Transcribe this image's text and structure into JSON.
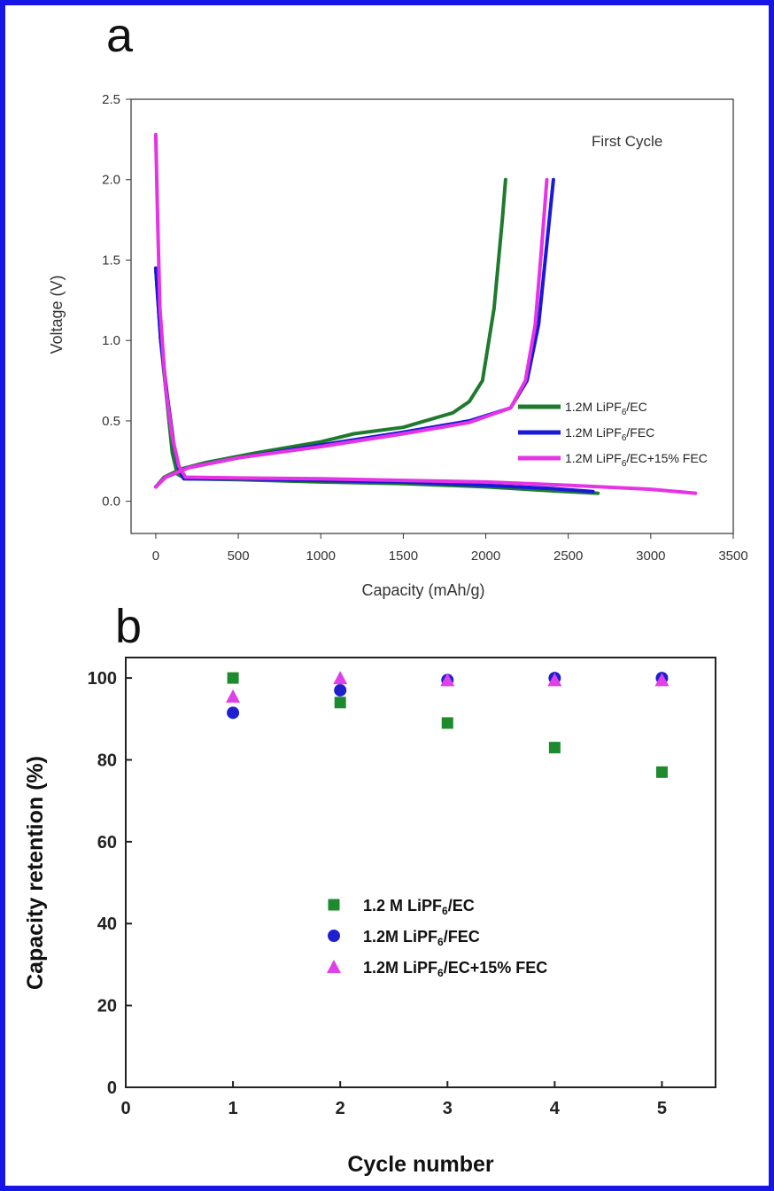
{
  "colors": {
    "frame": "#1515e6",
    "green": "#1f7a2e",
    "blue": "#1a1ad6",
    "magenta": "#e633e6",
    "green_marker": "#1e8a2e",
    "blue_marker": "#1f1fd0",
    "magenta_marker": "#e040e8"
  },
  "chart_data": [
    {
      "panel_label": "a",
      "type": "line",
      "annotation": "First Cycle",
      "xlabel": "Capacity (mAh/g)",
      "ylabel": "Voltage (V)",
      "xlim": [
        -150,
        3500
      ],
      "ylim": [
        -0.2,
        2.5
      ],
      "xticks": [
        0,
        500,
        1000,
        1500,
        2000,
        2500,
        3000,
        3500
      ],
      "yticks": [
        "0.0",
        "0.5",
        "1.0",
        "1.5",
        "2.0",
        "2.5"
      ],
      "grid": false,
      "legend_position": "center-right",
      "series": [
        {
          "name": "1.2M LiPF6/EC",
          "name_parts": [
            "1.2M LiPF",
            "6",
            "/EC"
          ],
          "color": "green",
          "discharge": [
            [
              0,
              1.45
            ],
            [
              30,
              1.0
            ],
            [
              60,
              0.7
            ],
            [
              100,
              0.3
            ],
            [
              130,
              0.17
            ],
            [
              180,
              0.14
            ],
            [
              500,
              0.135
            ],
            [
              1000,
              0.12
            ],
            [
              1500,
              0.11
            ],
            [
              2000,
              0.09
            ],
            [
              2400,
              0.065
            ],
            [
              2680,
              0.05
            ]
          ],
          "charge": [
            [
              0,
              0.09
            ],
            [
              50,
              0.15
            ],
            [
              150,
              0.2
            ],
            [
              300,
              0.24
            ],
            [
              600,
              0.3
            ],
            [
              1000,
              0.37
            ],
            [
              1200,
              0.42
            ],
            [
              1500,
              0.46
            ],
            [
              1800,
              0.55
            ],
            [
              1900,
              0.62
            ],
            [
              1980,
              0.75
            ],
            [
              2050,
              1.2
            ],
            [
              2100,
              1.75
            ],
            [
              2120,
              2.0
            ]
          ]
        },
        {
          "name": "1.2M LiPF6/FEC",
          "name_parts": [
            "1.2M LiPF",
            "6",
            "/FEC"
          ],
          "color": "blue",
          "discharge": [
            [
              0,
              1.45
            ],
            [
              30,
              1.0
            ],
            [
              70,
              0.65
            ],
            [
              110,
              0.35
            ],
            [
              140,
              0.2
            ],
            [
              170,
              0.14
            ],
            [
              500,
              0.14
            ],
            [
              1000,
              0.13
            ],
            [
              1500,
              0.12
            ],
            [
              2000,
              0.1
            ],
            [
              2400,
              0.08
            ],
            [
              2650,
              0.06
            ]
          ],
          "charge": [
            [
              0,
              0.09
            ],
            [
              60,
              0.15
            ],
            [
              200,
              0.21
            ],
            [
              500,
              0.27
            ],
            [
              1000,
              0.35
            ],
            [
              1500,
              0.43
            ],
            [
              1900,
              0.5
            ],
            [
              2150,
              0.58
            ],
            [
              2250,
              0.75
            ],
            [
              2320,
              1.1
            ],
            [
              2370,
              1.6
            ],
            [
              2410,
              2.0
            ]
          ]
        },
        {
          "name": "1.2M LiPF6/EC+15% FEC",
          "name_parts": [
            "1.2M LiPF",
            "6",
            "/EC+15% FEC"
          ],
          "color": "magenta",
          "discharge": [
            [
              0,
              2.28
            ],
            [
              10,
              1.8
            ],
            [
              25,
              1.2
            ],
            [
              60,
              0.7
            ],
            [
              100,
              0.4
            ],
            [
              140,
              0.22
            ],
            [
              180,
              0.15
            ],
            [
              500,
              0.145
            ],
            [
              1000,
              0.14
            ],
            [
              1500,
              0.13
            ],
            [
              2000,
              0.12
            ],
            [
              2500,
              0.1
            ],
            [
              3000,
              0.075
            ],
            [
              3270,
              0.05
            ]
          ],
          "charge": [
            [
              0,
              0.09
            ],
            [
              60,
              0.15
            ],
            [
              200,
              0.21
            ],
            [
              500,
              0.27
            ],
            [
              1000,
              0.34
            ],
            [
              1500,
              0.42
            ],
            [
              1900,
              0.49
            ],
            [
              2150,
              0.58
            ],
            [
              2240,
              0.75
            ],
            [
              2300,
              1.1
            ],
            [
              2340,
              1.6
            ],
            [
              2370,
              2.0
            ]
          ]
        }
      ]
    },
    {
      "panel_label": "b",
      "type": "scatter",
      "xlabel": "Cycle number",
      "ylabel": "Capacity retention (%)",
      "xlim": [
        0,
        5.5
      ],
      "ylim": [
        0,
        105
      ],
      "xticks": [
        0,
        1,
        2,
        3,
        4,
        5
      ],
      "yticks": [
        0,
        20,
        40,
        60,
        80,
        100
      ],
      "grid": false,
      "legend_position": "center",
      "series": [
        {
          "name": "1.2 M LiPF6/EC",
          "name_parts": [
            "1.2 M LiPF",
            "6",
            "/EC"
          ],
          "marker": "square",
          "color": "green_marker",
          "x": [
            1,
            2,
            3,
            4,
            5
          ],
          "y": [
            100,
            94,
            89,
            83,
            77
          ]
        },
        {
          "name": "1.2M LiPF6/FEC",
          "name_parts": [
            "1.2M LiPF",
            "6",
            "/FEC"
          ],
          "marker": "circle",
          "color": "blue_marker",
          "x": [
            1,
            2,
            3,
            4,
            5
          ],
          "y": [
            91.5,
            97,
            99.5,
            100,
            100
          ]
        },
        {
          "name": "1.2M LiPF6/EC+15% FEC",
          "name_parts": [
            "1.2M LiPF",
            "6",
            "/EC+15% FEC"
          ],
          "marker": "triangle",
          "color": "magenta_marker",
          "x": [
            1,
            2,
            3,
            4,
            5
          ],
          "y": [
            95.5,
            100,
            99.5,
            99.5,
            99.5
          ]
        }
      ]
    }
  ]
}
